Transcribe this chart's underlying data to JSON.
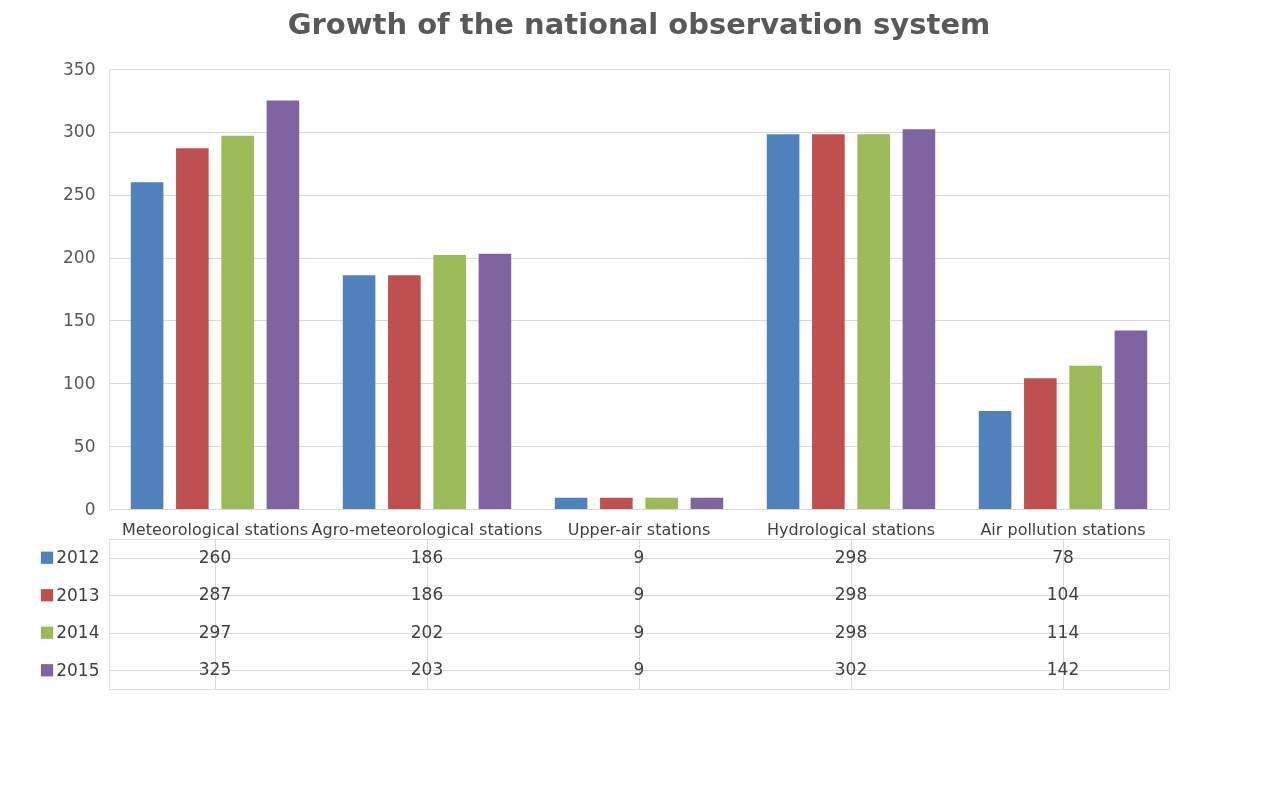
{
  "chart_data": {
    "type": "bar",
    "title": "Growth of the national observation system",
    "categories": [
      "Meteorological stations",
      "Agro-meteorological stations",
      "Upper-air stations",
      "Hydrological stations",
      "Air pollution stations"
    ],
    "series": [
      {
        "name": "2012",
        "color": "#4f81bd",
        "values": [
          260,
          186,
          9,
          298,
          78
        ]
      },
      {
        "name": "2013",
        "color": "#c0504d",
        "values": [
          287,
          186,
          9,
          298,
          104
        ]
      },
      {
        "name": "2014",
        "color": "#9bbb59",
        "values": [
          297,
          202,
          9,
          298,
          114
        ]
      },
      {
        "name": "2015",
        "color": "#8064a2",
        "values": [
          325,
          203,
          9,
          302,
          142
        ]
      }
    ],
    "ylim": [
      0,
      350
    ],
    "yticks": [
      0,
      50,
      100,
      150,
      200,
      250,
      300,
      350
    ],
    "grid": "y",
    "legend": "bottom",
    "data_labels": true
  }
}
